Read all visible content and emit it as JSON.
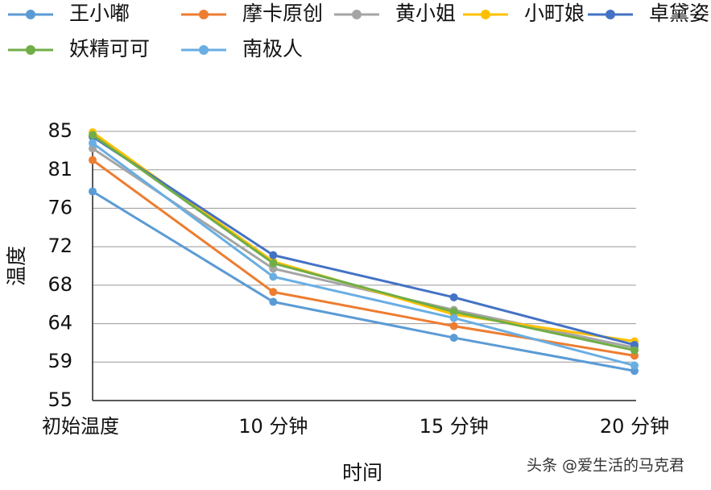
{
  "chart_data": {
    "type": "line",
    "categories": [
      "初始温度",
      "10 分钟",
      "15 分钟",
      "20 分钟"
    ],
    "x_label": "时间",
    "y_label": "温度",
    "ylim": [
      55,
      85
    ],
    "yticks": [
      55,
      {
        "value": 59.29,
        "label": "59"
      },
      {
        "value": 63.57,
        "label": "64"
      },
      {
        "value": 67.86,
        "label": "68"
      },
      {
        "value": 72.14,
        "label": "72"
      },
      {
        "value": 76.43,
        "label": "76"
      },
      {
        "value": 80.71,
        "label": "81"
      },
      85
    ],
    "grid": true,
    "series": [
      {
        "name": "王小嘟",
        "color": "#5b9bd5",
        "values": [
          78.3,
          66.0,
          62.0,
          58.3
        ]
      },
      {
        "name": "摩卡原创",
        "color": "#ed7d31",
        "values": [
          81.8,
          67.1,
          63.3,
          60.0
        ]
      },
      {
        "name": "黄小姐",
        "color": "#a5a5a5",
        "values": [
          83.1,
          69.7,
          65.1,
          60.9
        ]
      },
      {
        "name": "小町娘",
        "color": "#ffc000",
        "values": [
          84.9,
          70.5,
          64.6,
          61.6
        ]
      },
      {
        "name": "卓黛姿",
        "color": "#4472c4",
        "values": [
          84.4,
          71.2,
          66.5,
          61.2
        ]
      },
      {
        "name": "妖精可可",
        "color": "#70ad47",
        "values": [
          84.6,
          70.3,
          64.9,
          60.6
        ]
      },
      {
        "name": "南极人",
        "color": "#69aee3",
        "values": [
          83.7,
          68.8,
          64.2,
          58.9
        ]
      }
    ],
    "watermark": "头条 @爱生活的马克君"
  }
}
